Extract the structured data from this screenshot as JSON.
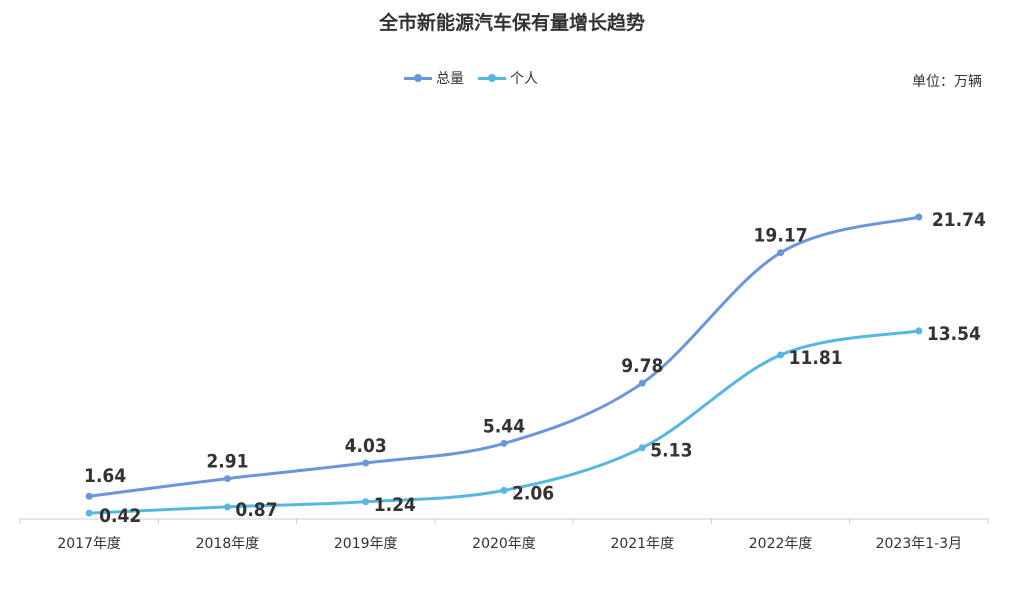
{
  "chart_data": {
    "type": "line",
    "title": "全市新能源汽车保有量增长趋势",
    "unit_label": "单位：万辆",
    "categories": [
      "2017年度",
      "2018年度",
      "2019年度",
      "2020年度",
      "2021年度",
      "2022年度",
      "2023年1-3月"
    ],
    "series": [
      {
        "name": "总量",
        "color": "#6A97DC",
        "values": [
          1.64,
          2.91,
          4.03,
          5.44,
          9.78,
          19.17,
          21.74
        ]
      },
      {
        "name": "个人",
        "color": "#56B8E2",
        "values": [
          0.42,
          0.87,
          1.24,
          2.06,
          5.13,
          11.81,
          13.54
        ]
      }
    ],
    "ylim": [
      0,
      30
    ],
    "grid": false,
    "legend_position": "top"
  }
}
